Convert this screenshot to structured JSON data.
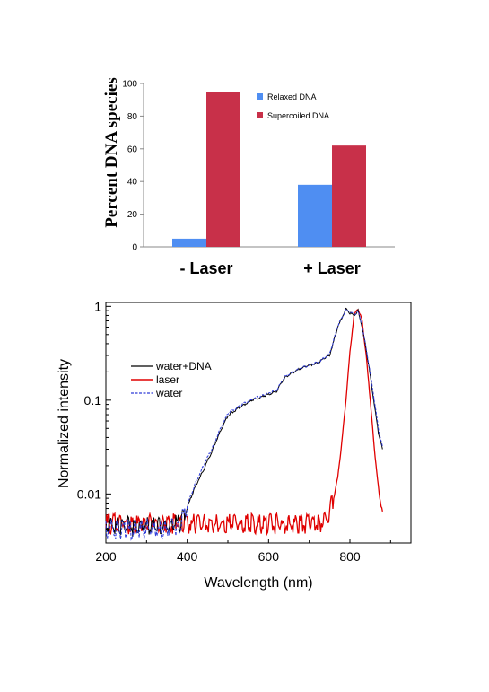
{
  "chart_data": [
    {
      "type": "bar",
      "categories": [
        "- Laser",
        "+ Laser"
      ],
      "series": [
        {
          "name": "Relaxed DNA",
          "values": [
            5,
            38
          ],
          "color": "#4f8ef2"
        },
        {
          "name": "Supercoiled DNA",
          "values": [
            95,
            62
          ],
          "color": "#c83049"
        }
      ],
      "title": "",
      "xlabel": "",
      "ylabel": "Percent DNA species",
      "ylim": [
        0,
        100
      ],
      "yticks": [
        "0",
        "20",
        "40",
        "60",
        "80",
        "100"
      ],
      "grid": false,
      "legend_position": "top-right"
    },
    {
      "type": "line",
      "title": "",
      "xlabel": "Wavelength (nm)",
      "ylabel": "Normalized intensity",
      "xlim": [
        200,
        950
      ],
      "ylim": [
        0.003,
        1.1
      ],
      "yscale": "log",
      "xticks": [
        "200",
        "400",
        "600",
        "800"
      ],
      "yticks": [
        "0.01",
        "0.1",
        "1"
      ],
      "grid": false,
      "legend_position": "middle-left",
      "series": [
        {
          "name": "water+DNA",
          "color": "#000000",
          "x": [
            200,
            300,
            350,
            380,
            400,
            420,
            440,
            460,
            480,
            500,
            530,
            560,
            600,
            620,
            640,
            680,
            720,
            750,
            770,
            790,
            800,
            810,
            820,
            830,
            840,
            850,
            860,
            870,
            880
          ],
          "y": [
            0.0045,
            0.0045,
            0.0045,
            0.0048,
            0.0072,
            0.012,
            0.018,
            0.028,
            0.045,
            0.068,
            0.085,
            0.1,
            0.115,
            0.125,
            0.175,
            0.22,
            0.25,
            0.3,
            0.6,
            0.95,
            0.85,
            0.8,
            0.9,
            0.6,
            0.35,
            0.18,
            0.09,
            0.045,
            0.03
          ]
        },
        {
          "name": "laser",
          "color": "#e00000",
          "x": [
            200,
            300,
            400,
            500,
            600,
            700,
            740,
            750,
            760,
            770,
            780,
            790,
            800,
            810,
            820,
            830,
            840,
            850,
            860,
            870,
            875,
            880
          ],
          "y": [
            0.0048,
            0.0048,
            0.0048,
            0.0048,
            0.0048,
            0.0048,
            0.005,
            0.0065,
            0.009,
            0.015,
            0.035,
            0.1,
            0.32,
            0.8,
            0.95,
            0.7,
            0.3,
            0.1,
            0.03,
            0.012,
            0.008,
            0.0065
          ]
        },
        {
          "name": "water",
          "color": "#2e3bd8",
          "x": [
            200,
            300,
            350,
            380,
            400,
            420,
            440,
            460,
            480,
            500,
            530,
            560,
            600,
            620,
            640,
            680,
            720,
            750,
            770,
            790,
            800,
            810,
            820,
            830,
            840,
            850,
            860,
            870,
            880
          ],
          "y": [
            0.0042,
            0.0042,
            0.0042,
            0.0046,
            0.0075,
            0.013,
            0.02,
            0.03,
            0.048,
            0.072,
            0.088,
            0.103,
            0.118,
            0.128,
            0.178,
            0.222,
            0.252,
            0.31,
            0.62,
            0.92,
            0.88,
            0.82,
            0.88,
            0.62,
            0.36,
            0.19,
            0.1,
            0.05,
            0.032
          ]
        }
      ]
    }
  ]
}
